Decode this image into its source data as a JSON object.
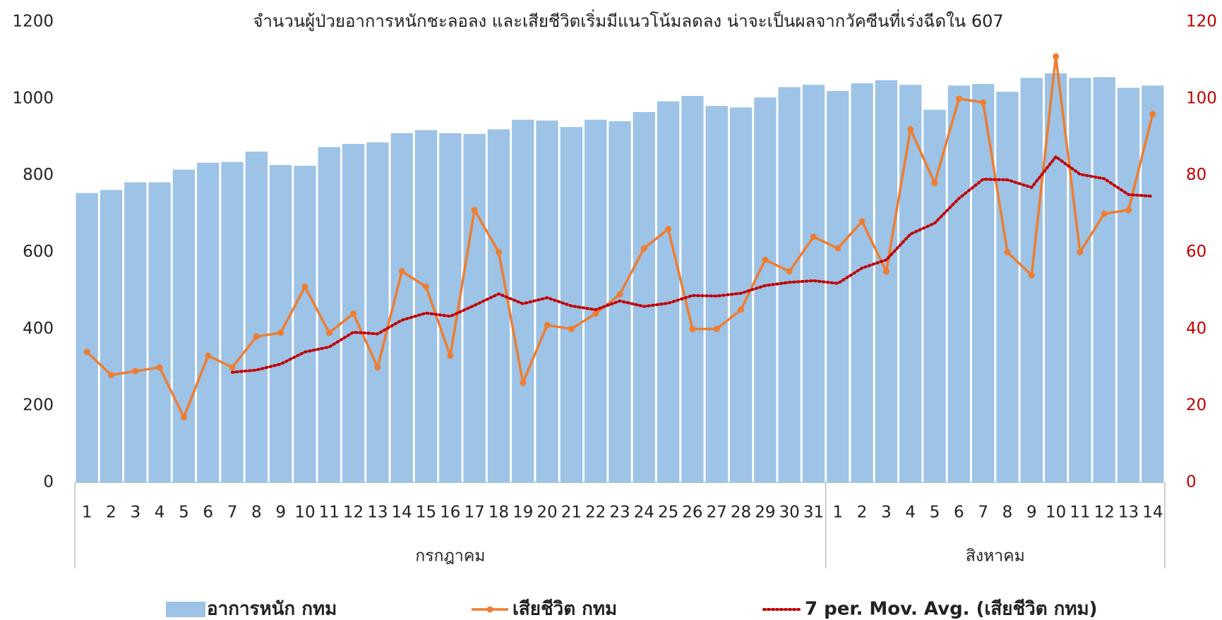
{
  "chart_data": {
    "type": "bar_line",
    "title": "จำนวนผู้ป่วยอาการหนักชะลอลง และเสียชีวิตเริ่มมีแนวโน้มลดลง น่าจะเป็นผลจากวัคซีนที่เร่งฉีดใน 607",
    "groups": [
      {
        "label": "กรกฎาคม",
        "categories": [
          "1",
          "2",
          "3",
          "4",
          "5",
          "6",
          "7",
          "8",
          "9",
          "10",
          "11",
          "12",
          "13",
          "14",
          "15",
          "16",
          "17",
          "18",
          "19",
          "20",
          "21",
          "22",
          "23",
          "24",
          "25",
          "26",
          "27",
          "28",
          "29",
          "30",
          "31"
        ]
      },
      {
        "label": "สิงหาคม",
        "categories": [
          "1",
          "2",
          "3",
          "4",
          "5",
          "6",
          "7",
          "8",
          "9",
          "10",
          "11",
          "12",
          "13",
          "14"
        ]
      }
    ],
    "series": [
      {
        "name": "อาการหนัก กทม",
        "type": "bar",
        "color": "#9dc3e6",
        "values": [
          754,
          762,
          782,
          782,
          815,
          833,
          835,
          862,
          827,
          825,
          874,
          882,
          886,
          910,
          918,
          910,
          908,
          920,
          945,
          943,
          926,
          945,
          941,
          965,
          993,
          1007,
          981,
          977,
          1003,
          1030,
          1036,
          1020,
          1040,
          1048,
          1036,
          971,
          1034,
          1038,
          1018,
          1054,
          1066,
          1054,
          1056,
          1028,
          1034
        ]
      },
      {
        "name": "เสียชีวิต กทม",
        "type": "line",
        "axis": "y2",
        "color": "#ed7d31",
        "values": [
          34,
          28,
          29,
          30,
          17,
          33,
          30,
          38,
          39,
          51,
          39,
          44,
          30,
          55,
          51,
          33,
          71,
          60,
          26,
          41,
          40,
          44,
          49,
          61,
          66,
          40,
          40,
          45,
          58,
          55,
          64,
          61,
          68,
          55,
          92,
          78,
          100,
          99,
          60,
          54,
          111,
          60,
          70,
          71,
          96
        ]
      },
      {
        "name": "7 per. Mov. Avg. (เสียชีวิต กทม)",
        "type": "dotted",
        "axis": "y2",
        "color": "#c00000",
        "values": [
          null,
          null,
          null,
          null,
          null,
          null,
          28.71,
          29.29,
          30.86,
          34.0,
          35.29,
          39.14,
          38.71,
          42.29,
          44.14,
          43.29,
          46.14,
          49.14,
          46.57,
          48.14,
          46.0,
          45.0,
          47.29,
          45.86,
          46.71,
          48.71,
          48.57,
          49.29,
          51.29,
          52.14,
          52.57,
          51.86,
          55.86,
          58.0,
          64.71,
          67.57,
          74.0,
          79.0,
          78.86,
          76.86,
          84.86,
          80.29,
          79.14,
          75.0,
          74.57
        ]
      }
    ],
    "ylim": [
      0,
      1200
    ],
    "yticks": [
      0,
      200,
      400,
      600,
      800,
      1000,
      1200
    ],
    "y2lim": [
      0,
      120
    ],
    "y2ticks": [
      0,
      20,
      40,
      60,
      80,
      100,
      120
    ],
    "y2_color": "#c00000",
    "legend": "bottom"
  }
}
